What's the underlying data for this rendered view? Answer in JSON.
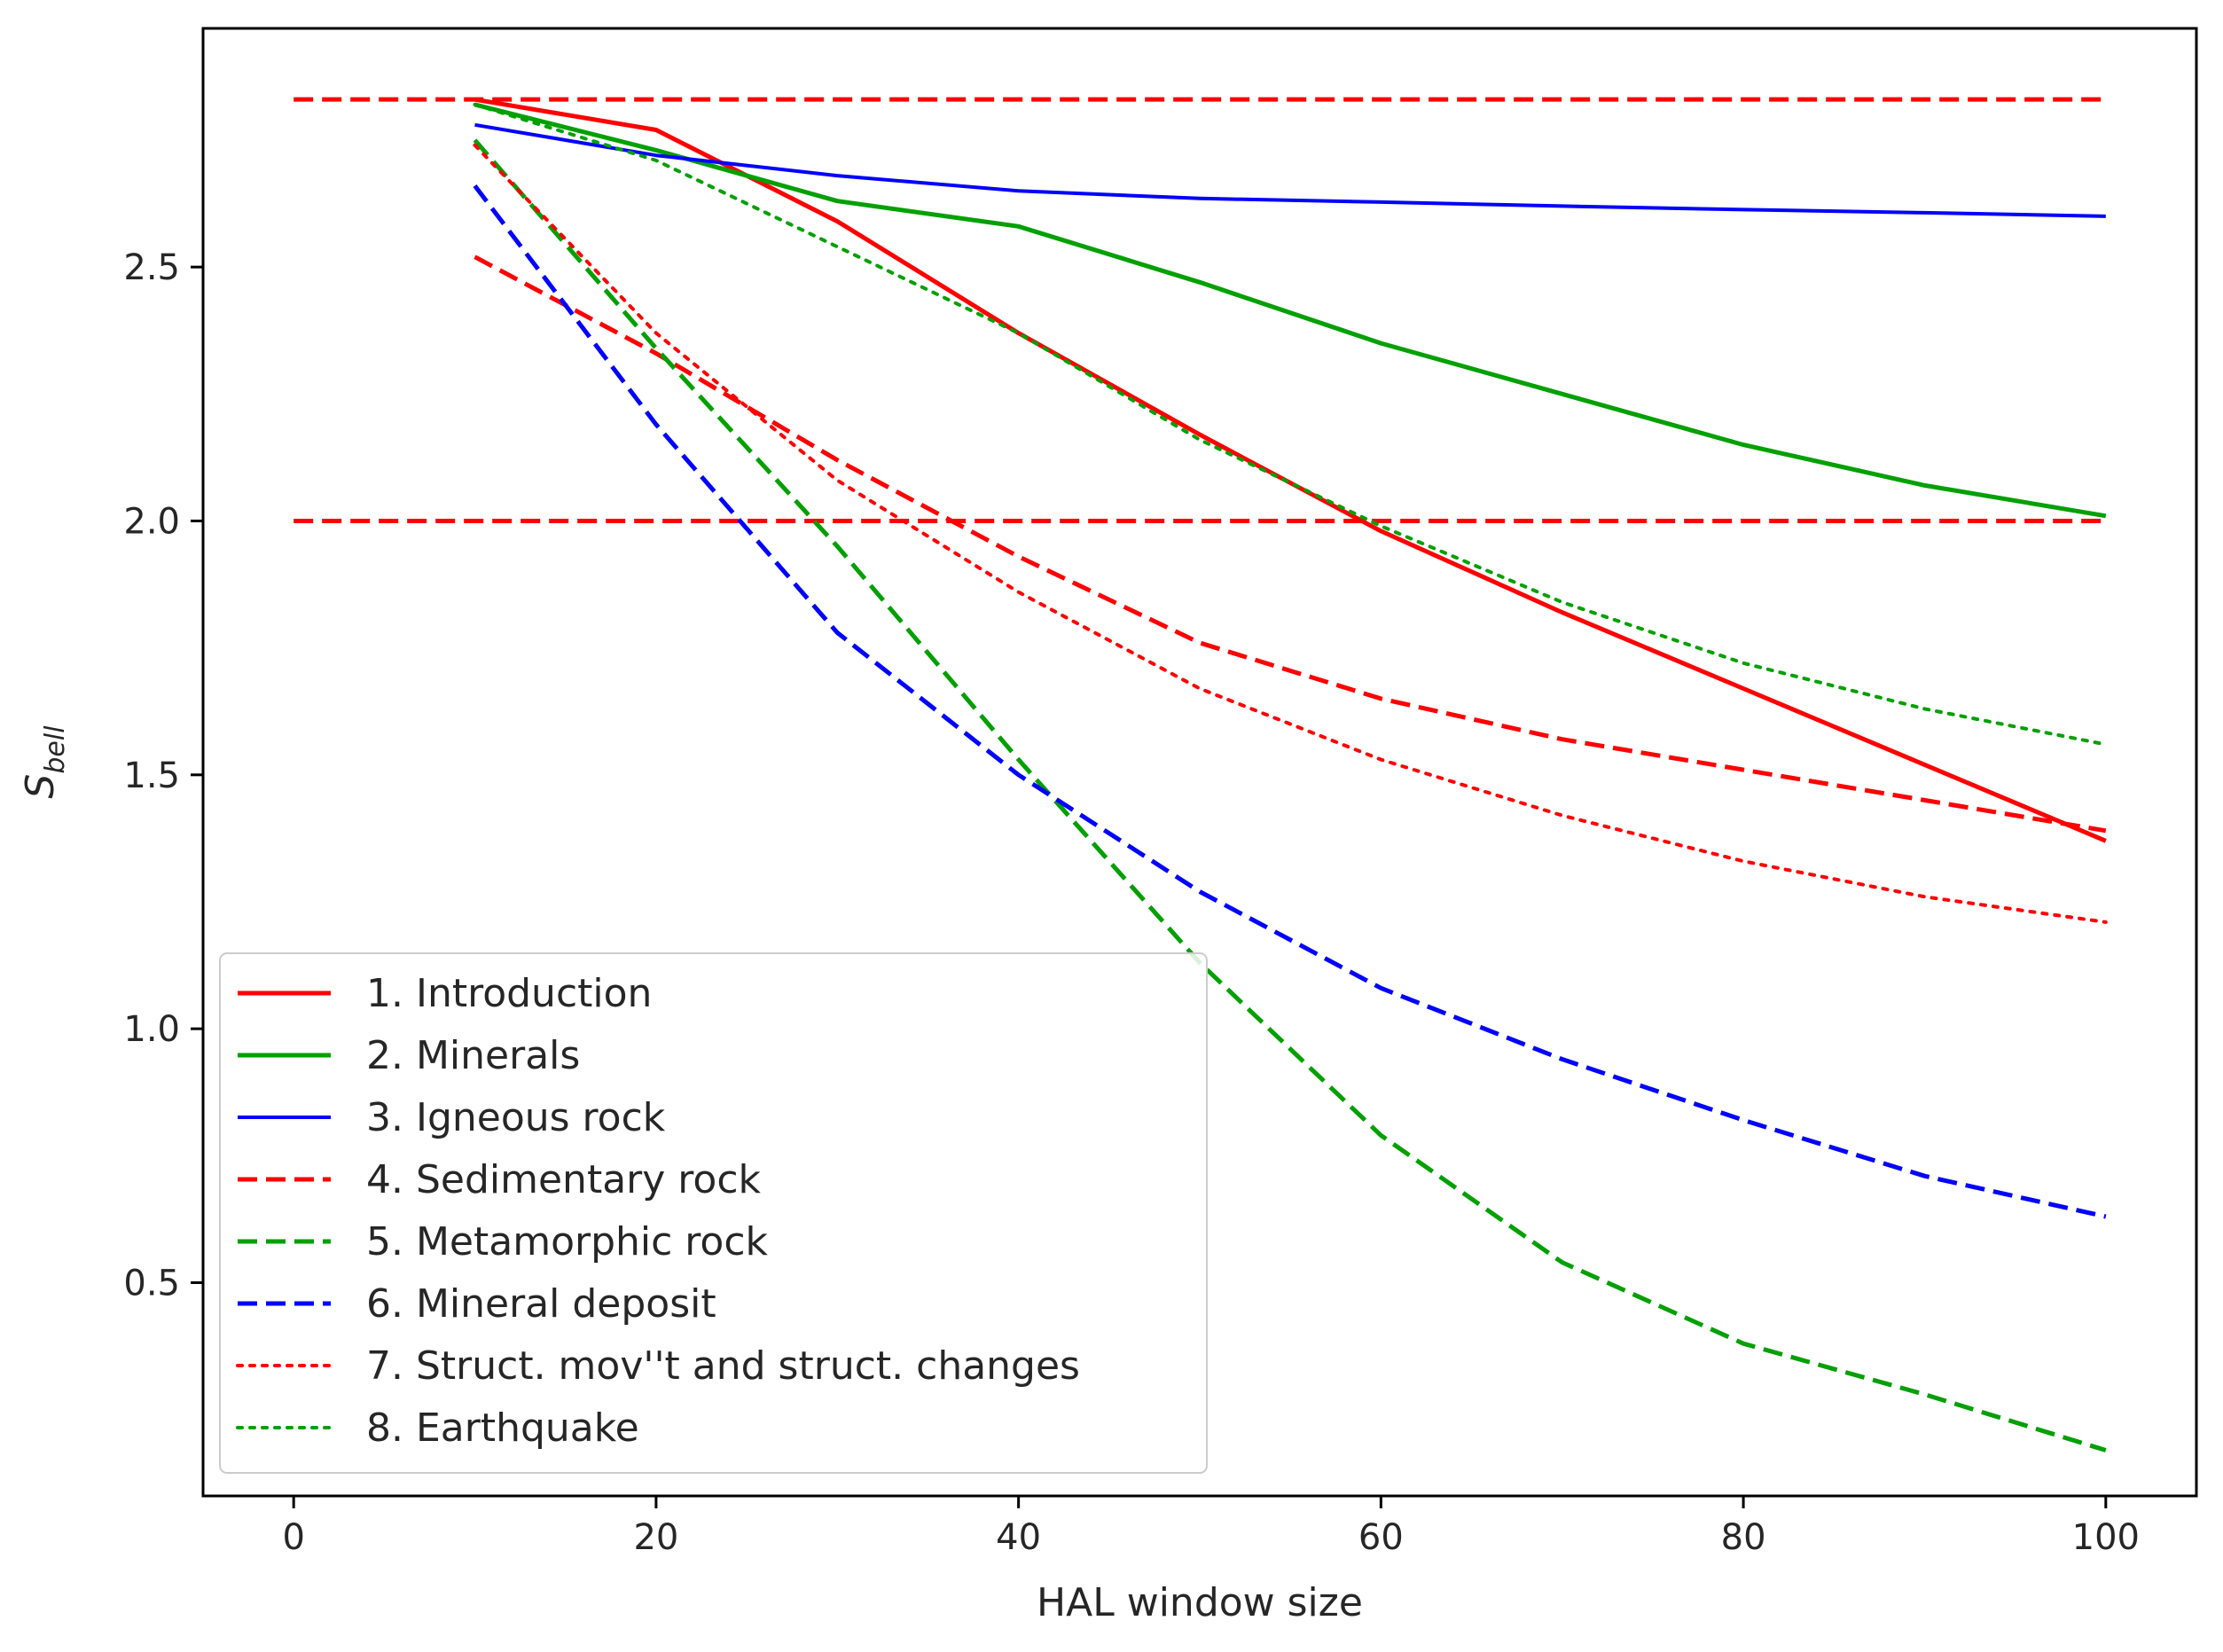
{
  "chart_data": {
    "type": "line",
    "title": "",
    "xlabel": "HAL window size",
    "ylabel_main": "S",
    "ylabel_sub": "bell",
    "xlim": [
      -5,
      105
    ],
    "ylim": [
      0.08,
      2.97
    ],
    "xticks": [
      0,
      20,
      40,
      60,
      80,
      100
    ],
    "yticks": [
      0.5,
      1.0,
      1.5,
      2.0,
      2.5
    ],
    "ytick_labels": [
      "0.5",
      "1.0",
      "1.5",
      "2.0",
      "2.5"
    ],
    "grid": false,
    "legend_position": "lower-left",
    "reference_lines": [
      {
        "y": 2.83,
        "x": [
          0,
          100
        ],
        "color": "#ff0000",
        "style": "dashed"
      },
      {
        "y": 2.0,
        "x": [
          0,
          100
        ],
        "color": "#ff0000",
        "style": "dashed"
      }
    ],
    "series": [
      {
        "name": "1. Introduction",
        "color": "#ff0000",
        "style": "solid",
        "width": 5,
        "x": [
          10,
          20,
          30,
          40,
          50,
          60,
          70,
          80,
          90,
          100
        ],
        "y": [
          2.83,
          2.77,
          2.59,
          2.37,
          2.17,
          1.98,
          1.82,
          1.67,
          1.52,
          1.37
        ]
      },
      {
        "name": "2. Minerals",
        "color": "#00a000",
        "style": "solid",
        "width": 5,
        "x": [
          10,
          20,
          30,
          40,
          50,
          60,
          70,
          80,
          90,
          100
        ],
        "y": [
          2.82,
          2.73,
          2.63,
          2.58,
          2.47,
          2.35,
          2.25,
          2.15,
          2.07,
          2.01
        ]
      },
      {
        "name": "3. Igneous rock",
        "color": "#0000ff",
        "style": "solid",
        "width": 4,
        "x": [
          10,
          20,
          30,
          40,
          50,
          60,
          70,
          80,
          90,
          100
        ],
        "y": [
          2.78,
          2.72,
          2.68,
          2.65,
          2.635,
          2.628,
          2.62,
          2.613,
          2.607,
          2.6
        ]
      },
      {
        "name": "4. Sedimentary rock",
        "color": "#ff0000",
        "style": "dashed",
        "width": 5,
        "x": [
          10,
          20,
          30,
          40,
          50,
          60,
          70,
          80,
          90,
          100
        ],
        "y": [
          2.52,
          2.33,
          2.12,
          1.93,
          1.76,
          1.65,
          1.57,
          1.51,
          1.45,
          1.39
        ]
      },
      {
        "name": "5. Metamorphic rock",
        "color": "#00a000",
        "style": "dashed",
        "width": 5,
        "x": [
          10,
          20,
          30,
          40,
          50,
          60,
          70,
          80,
          90,
          100
        ],
        "y": [
          2.75,
          2.34,
          1.95,
          1.53,
          1.13,
          0.79,
          0.54,
          0.38,
          0.28,
          0.17
        ]
      },
      {
        "name": "6. Mineral deposit",
        "color": "#0000ff",
        "style": "dashed",
        "width": 5,
        "x": [
          10,
          20,
          30,
          40,
          50,
          60,
          70,
          80,
          90,
          100
        ],
        "y": [
          2.66,
          2.19,
          1.78,
          1.5,
          1.27,
          1.08,
          0.94,
          0.82,
          0.71,
          0.63
        ]
      },
      {
        "name": "7. Struct. mov''t and struct. changes",
        "color": "#ff0000",
        "style": "dotted",
        "width": 4,
        "x": [
          10,
          20,
          30,
          40,
          50,
          60,
          70,
          80,
          90,
          100
        ],
        "y": [
          2.74,
          2.37,
          2.08,
          1.86,
          1.67,
          1.53,
          1.42,
          1.33,
          1.26,
          1.21
        ]
      },
      {
        "name": "8. Earthquake",
        "color": "#00a000",
        "style": "dotted",
        "width": 4,
        "x": [
          10,
          20,
          30,
          40,
          50,
          60,
          70,
          80,
          90,
          100
        ],
        "y": [
          2.82,
          2.71,
          2.54,
          2.37,
          2.16,
          1.99,
          1.84,
          1.72,
          1.63,
          1.56
        ]
      }
    ]
  }
}
